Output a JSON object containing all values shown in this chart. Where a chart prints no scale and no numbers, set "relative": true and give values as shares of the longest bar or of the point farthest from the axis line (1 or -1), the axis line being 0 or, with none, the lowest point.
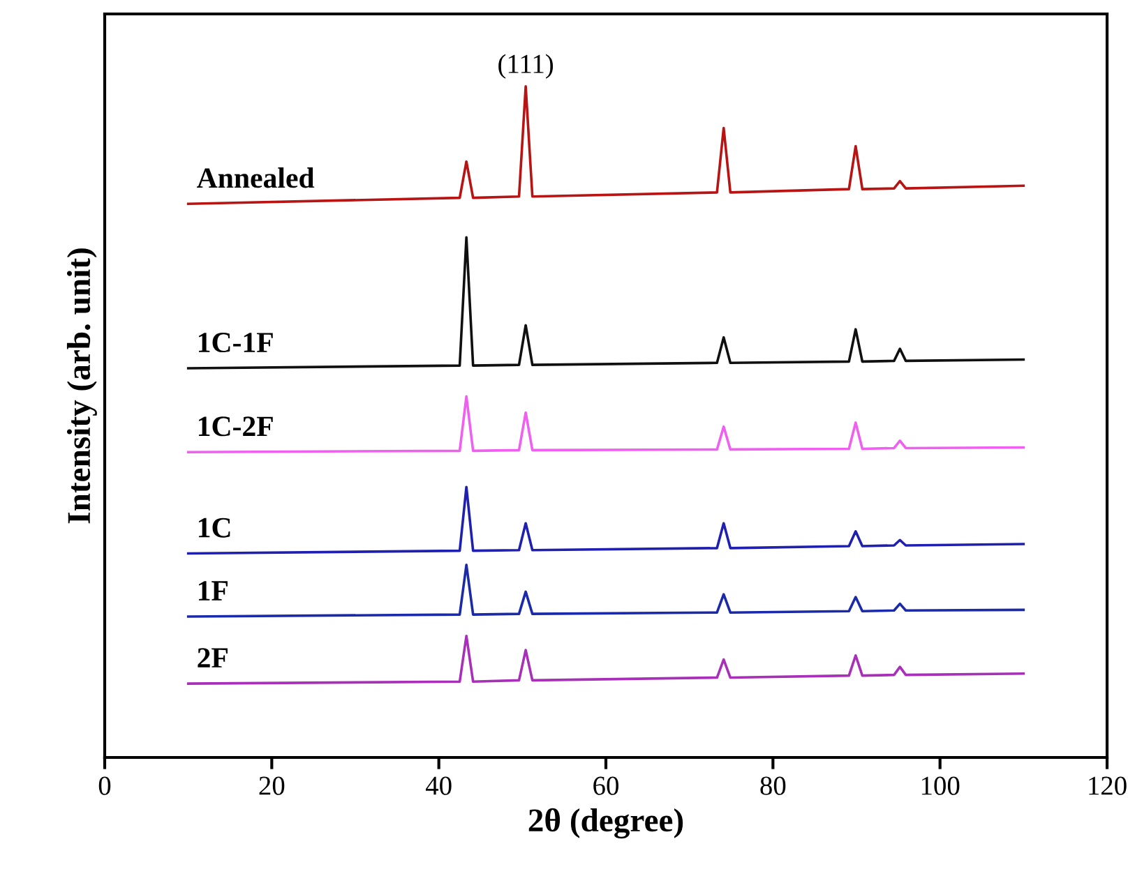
{
  "chart_data": {
    "type": "line",
    "relative": true,
    "xlabel": "2θ (degree)",
    "ylabel": "Intensity (arb. unit)",
    "xlim": [
      0,
      120
    ],
    "xticks": [
      0,
      20,
      40,
      60,
      80,
      100,
      120
    ],
    "grid": false,
    "legend": false,
    "marker": "none",
    "line_style": "solid",
    "x": [
      10,
      42.5,
      43.3,
      44.1,
      49.6,
      50.4,
      51.2,
      73.3,
      74.1,
      74.9,
      89.1,
      89.9,
      90.7,
      94.5,
      95.2,
      95.9,
      110
    ],
    "annotations": [
      {
        "text": "(111)",
        "x": 50.4,
        "y": 1.0
      }
    ],
    "series": [
      {
        "name": "Annealed",
        "color": "#b81414",
        "values": [
          0.825,
          0.834,
          0.888,
          0.834,
          0.836,
          1.0,
          0.836,
          0.842,
          0.938,
          0.842,
          0.847,
          0.911,
          0.847,
          0.848,
          0.859,
          0.848,
          0.852
        ]
      },
      {
        "name": "1C-1F",
        "color": "#101010",
        "values": [
          0.58,
          0.584,
          0.775,
          0.584,
          0.585,
          0.644,
          0.585,
          0.588,
          0.626,
          0.588,
          0.59,
          0.638,
          0.59,
          0.591,
          0.609,
          0.591,
          0.593
        ]
      },
      {
        "name": "1C-2F",
        "color": "#f060f0",
        "values": [
          0.455,
          0.457,
          0.538,
          0.457,
          0.458,
          0.514,
          0.458,
          0.459,
          0.493,
          0.459,
          0.46,
          0.499,
          0.46,
          0.461,
          0.472,
          0.461,
          0.462
        ]
      },
      {
        "name": "1C",
        "color": "#2020b0",
        "values": [
          0.304,
          0.308,
          0.403,
          0.308,
          0.309,
          0.349,
          0.309,
          0.312,
          0.349,
          0.312,
          0.315,
          0.337,
          0.315,
          0.316,
          0.324,
          0.316,
          0.318
        ]
      },
      {
        "name": "1F",
        "color": "#1a2aa8",
        "values": [
          0.21,
          0.213,
          0.287,
          0.213,
          0.214,
          0.247,
          0.214,
          0.216,
          0.243,
          0.216,
          0.218,
          0.239,
          0.218,
          0.219,
          0.229,
          0.219,
          0.22
        ]
      },
      {
        "name": "2F",
        "color": "#a830b8",
        "values": [
          0.11,
          0.113,
          0.181,
          0.113,
          0.115,
          0.16,
          0.115,
          0.119,
          0.146,
          0.119,
          0.122,
          0.152,
          0.122,
          0.123,
          0.135,
          0.123,
          0.125
        ]
      }
    ]
  }
}
